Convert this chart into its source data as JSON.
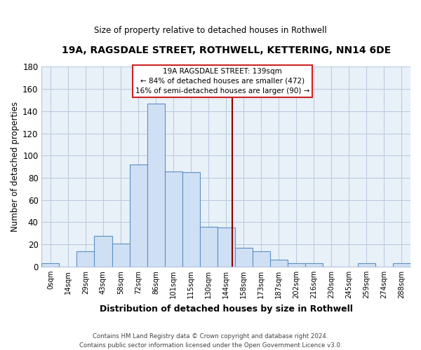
{
  "title": "19A, RAGSDALE STREET, ROTHWELL, KETTERING, NN14 6DE",
  "subtitle": "Size of property relative to detached houses in Rothwell",
  "xlabel": "Distribution of detached houses by size in Rothwell",
  "ylabel": "Number of detached properties",
  "bar_color": "#d0e0f4",
  "bar_edge_color": "#5b8fc4",
  "plot_bg_color": "#e8f0f8",
  "categories": [
    "0sqm",
    "14sqm",
    "29sqm",
    "43sqm",
    "58sqm",
    "72sqm",
    "86sqm",
    "101sqm",
    "115sqm",
    "130sqm",
    "144sqm",
    "158sqm",
    "173sqm",
    "187sqm",
    "202sqm",
    "216sqm",
    "230sqm",
    "245sqm",
    "259sqm",
    "274sqm",
    "288sqm"
  ],
  "values": [
    3,
    0,
    14,
    28,
    21,
    92,
    147,
    86,
    85,
    36,
    35,
    17,
    14,
    6,
    3,
    3,
    0,
    0,
    3,
    0,
    3
  ],
  "ylim": [
    0,
    180
  ],
  "yticks": [
    0,
    20,
    40,
    60,
    80,
    100,
    120,
    140,
    160,
    180
  ],
  "marker_label": "19A RAGSDALE STREET: 139sqm",
  "annotation_line1": "← 84% of detached houses are smaller (472)",
  "annotation_line2": "16% of semi-detached houses are larger (90) →",
  "vline_color": "#8b0000",
  "vline_x_index": 10.35,
  "footer_line1": "Contains HM Land Registry data © Crown copyright and database right 2024.",
  "footer_line2": "Contains public sector information licensed under the Open Government Licence v3.0.",
  "background_color": "#ffffff",
  "grid_color": "#b8c8dc"
}
